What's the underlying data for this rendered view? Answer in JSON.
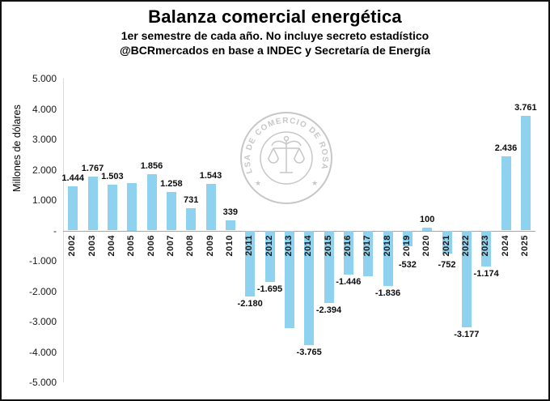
{
  "chart_data": {
    "type": "bar",
    "title": "Balanza comercial energética",
    "subtitle1": "1er semestre de cada año. No incluye secreto estadístico",
    "subtitle2": "@BCRmercados en base a INDEC y Secretaría de Energía",
    "ylabel": "Millones de dólares",
    "ylim": [
      -5000,
      5000
    ],
    "ytick_step": 1000,
    "ytick_labels": [
      "5.000",
      "4.000",
      "3.000",
      "2.000",
      "1.000",
      "-",
      "-1.000",
      "-2.000",
      "-3.000",
      "-4.000",
      "-5.000"
    ],
    "grid": false,
    "legend": false,
    "bar_color": "#8FD2F0",
    "categories": [
      2002,
      2003,
      2004,
      2005,
      2006,
      2007,
      2008,
      2009,
      2010,
      2011,
      2012,
      2013,
      2014,
      2015,
      2016,
      2017,
      2018,
      2019,
      2020,
      2021,
      2022,
      2023,
      2024,
      2025
    ],
    "values": [
      1444,
      1767,
      1503,
      1550,
      1856,
      1258,
      731,
      1543,
      339,
      -2180,
      -1695,
      -3200,
      -3765,
      -2394,
      -1446,
      -1500,
      -1836,
      -532,
      100,
      -752,
      -3177,
      -1174,
      2436,
      3761
    ],
    "data_labels": [
      "1.444",
      "1.767",
      "1.503",
      "",
      "1.856",
      "1.258",
      "731",
      "1.543",
      "339",
      "-2.180",
      "-1.695",
      "",
      "-3.765",
      "-2.394",
      "-1.446",
      "",
      "-1.836",
      "-532",
      "100",
      "-752",
      "-3.177",
      "-1.174",
      "2.436",
      "3.761"
    ]
  },
  "watermark": {
    "arc_text": "BOLSA DE COMERCIO DE ROSARIO",
    "star": "★"
  }
}
